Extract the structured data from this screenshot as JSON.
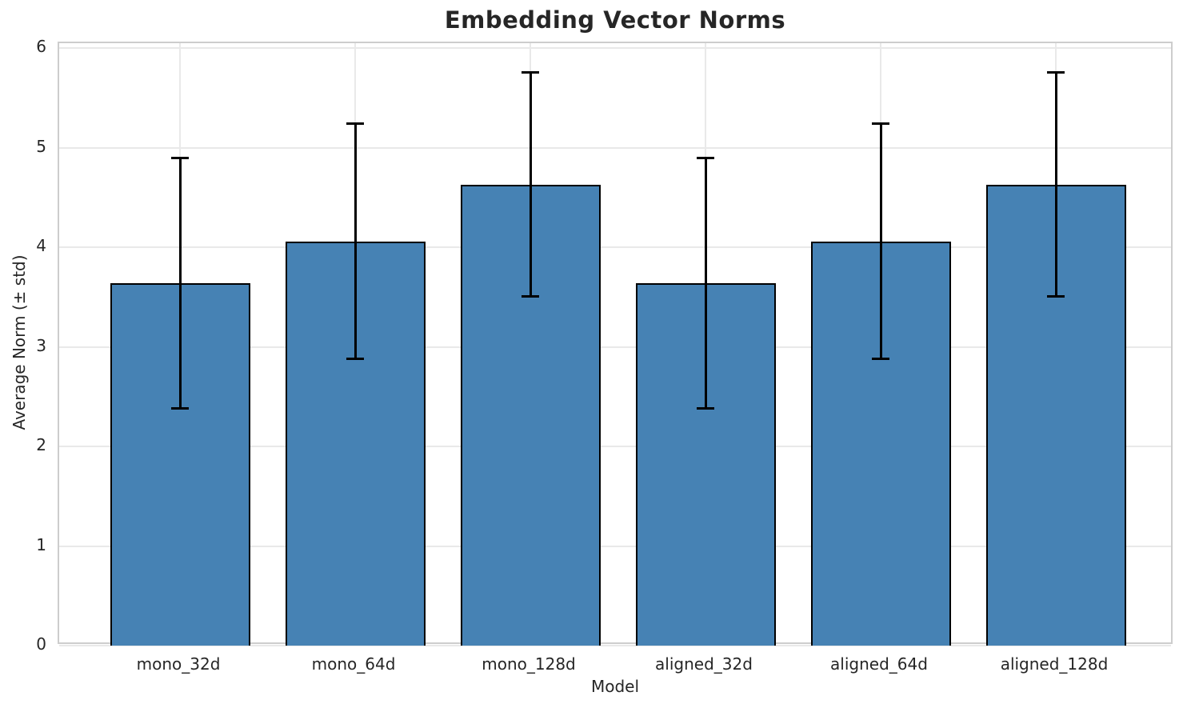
{
  "chart_data": {
    "type": "bar",
    "title": "Embedding Vector Norms",
    "xlabel": "Model",
    "ylabel": "Average Norm (± std)",
    "categories": [
      "mono_32d",
      "mono_64d",
      "mono_128d",
      "aligned_32d",
      "aligned_64d",
      "aligned_128d"
    ],
    "series": [
      {
        "name": "Average Norm (± std)",
        "values": [
          3.64,
          4.06,
          4.63,
          3.64,
          4.06,
          4.63
        ],
        "std": [
          1.26,
          1.18,
          1.13,
          1.26,
          1.18,
          1.13
        ],
        "error_low": [
          2.38,
          2.88,
          3.51,
          2.38,
          2.88,
          3.51
        ],
        "error_high": [
          4.9,
          5.24,
          5.76,
          4.9,
          5.24,
          5.76
        ]
      }
    ],
    "yticks": [
      0,
      1,
      2,
      3,
      4,
      5,
      6
    ],
    "ytick_labels": [
      "0",
      "1",
      "2",
      "3",
      "4",
      "5",
      "6"
    ],
    "ylim": [
      0,
      6.05
    ],
    "grid": "both",
    "legend": "none",
    "colors": {
      "bar_fill": "#4682B4",
      "bar_edge": "#000000",
      "error_bar": "#000000",
      "grid": "#e9e9e9",
      "spine": "#cdcdcd",
      "text": "#262626",
      "background": "#ffffff"
    }
  }
}
